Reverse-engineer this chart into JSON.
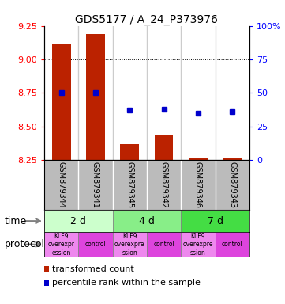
{
  "title": "GDS5177 / A_24_P373976",
  "samples": [
    "GSM879344",
    "GSM879341",
    "GSM879345",
    "GSM879342",
    "GSM879346",
    "GSM879343"
  ],
  "bar_values": [
    9.12,
    9.19,
    8.37,
    8.44,
    8.27,
    8.27
  ],
  "dot_values": [
    50,
    50,
    37,
    38,
    35,
    36
  ],
  "ylim_left": [
    8.25,
    9.25
  ],
  "ylim_right": [
    0,
    100
  ],
  "yticks_left": [
    8.25,
    8.5,
    8.75,
    9.0,
    9.25
  ],
  "yticks_right": [
    0,
    25,
    50,
    75,
    100
  ],
  "bar_color": "#bb2200",
  "dot_color": "#0000cc",
  "bar_bottom": 8.25,
  "time_labels": [
    "2 d",
    "4 d",
    "7 d"
  ],
  "time_colors": [
    "#ccffcc",
    "#88ee88",
    "#44dd44"
  ],
  "protocol_labels": [
    "KLF9\noverexpr\nession",
    "control",
    "KLF9\noverexpre\nssion",
    "control",
    "KLF9\noverexpre\nssion",
    "control"
  ],
  "protocol_colors": [
    "#ee88ee",
    "#dd44dd",
    "#ee88ee",
    "#dd44dd",
    "#ee88ee",
    "#dd44dd"
  ],
  "grid_yticks": [
    8.5,
    8.75,
    9.0
  ],
  "background_sample": "#bbbbbb",
  "legend_label1": "transformed count",
  "legend_label2": "percentile rank within the sample"
}
